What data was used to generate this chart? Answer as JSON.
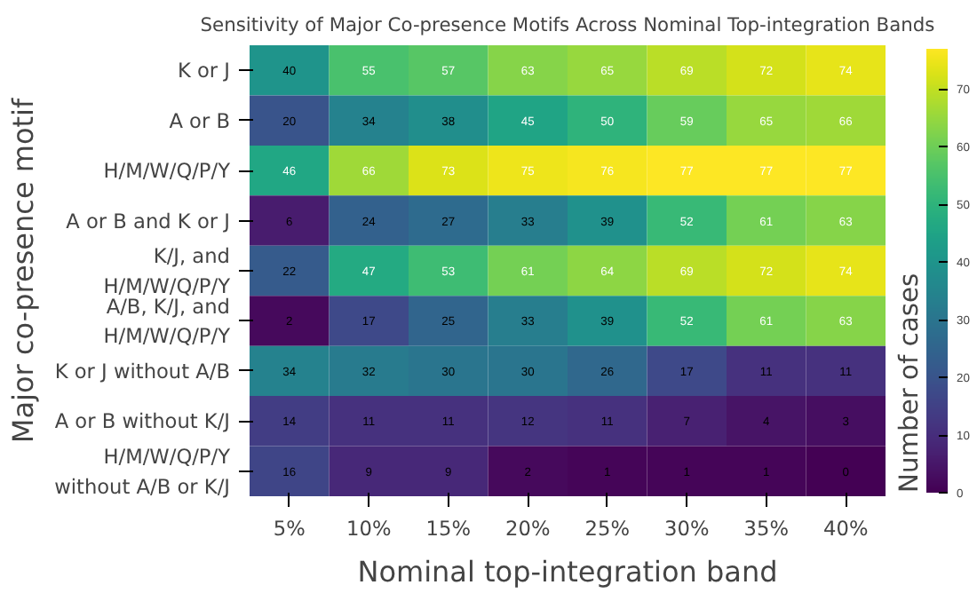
{
  "chart_data": {
    "type": "heatmap",
    "title": "Sensitivity of Major Co-presence Motifs Across Nominal Top-integration Bands",
    "xlabel": "Nominal top-integration band",
    "ylabel": "Major co-presence motif",
    "clabel": "Number of cases",
    "categories": [
      "5%",
      "10%",
      "15%",
      "20%",
      "25%",
      "30%",
      "35%",
      "40%"
    ],
    "y_categories": [
      "K or J",
      "A or B",
      "H/M/W/Q/P/Y",
      "A or B and K or J",
      "K/J, and\nH/M/W/Q/P/Y",
      "A/B, K/J, and\nH/M/W/Q/P/Y",
      "K or J without A/B",
      "A or B without K/J",
      "H/M/W/Q/P/Y\nwithout A/B or K/J"
    ],
    "cells": [
      [
        40,
        55,
        57,
        63,
        65,
        69,
        72,
        74
      ],
      [
        20,
        34,
        38,
        45,
        50,
        59,
        65,
        66
      ],
      [
        46,
        66,
        73,
        75,
        76,
        77,
        77,
        77
      ],
      [
        6,
        24,
        27,
        33,
        39,
        52,
        61,
        63
      ],
      [
        22,
        47,
        53,
        61,
        64,
        69,
        72,
        74
      ],
      [
        2,
        17,
        25,
        33,
        39,
        52,
        61,
        63
      ],
      [
        34,
        32,
        30,
        30,
        26,
        17,
        11,
        11
      ],
      [
        14,
        11,
        11,
        12,
        11,
        7,
        4,
        3
      ],
      [
        16,
        9,
        9,
        2,
        1,
        1,
        1,
        0
      ]
    ],
    "clim": [
      0,
      77
    ],
    "cticks": [
      0,
      10,
      20,
      30,
      40,
      50,
      60,
      70
    ],
    "data_labels": true
  }
}
